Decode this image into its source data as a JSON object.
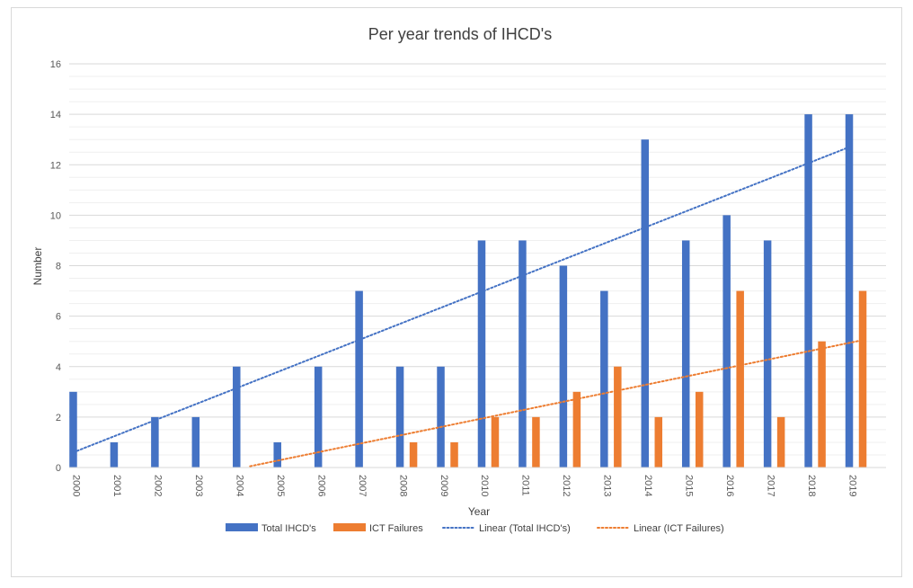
{
  "chart_data": {
    "type": "bar",
    "title": "Per year trends of IHCD's",
    "xlabel": "Year",
    "ylabel": "Number",
    "ylim": [
      0,
      16
    ],
    "yticks": [
      0,
      2,
      4,
      6,
      8,
      10,
      12,
      14,
      16
    ],
    "grid": true,
    "legend_position": "bottom",
    "categories": [
      "2000",
      "2001",
      "2002",
      "2003",
      "2004",
      "2005",
      "2006",
      "2007",
      "2008",
      "2009",
      "2010",
      "2011",
      "2012",
      "2013",
      "2014",
      "2015",
      "2016",
      "2017",
      "2018",
      "2019"
    ],
    "series": [
      {
        "name": "Total IHCD's",
        "color": "#4472c4",
        "values": [
          3,
          1,
          2,
          2,
          4,
          1,
          4,
          7,
          4,
          4,
          9,
          9,
          8,
          7,
          13,
          9,
          10,
          9,
          14,
          14
        ]
      },
      {
        "name": "ICT Failures",
        "color": "#ed7d31",
        "values": [
          0,
          0,
          0,
          0,
          0,
          0,
          0,
          0,
          1,
          1,
          2,
          2,
          3,
          4,
          2,
          3,
          7,
          2,
          5,
          7
        ]
      }
    ],
    "trendlines": [
      {
        "name": "Linear  (Total IHCD's)",
        "color": "#4472c4",
        "from": [
          "2000",
          0.6
        ],
        "to": [
          "2019",
          12.7
        ]
      },
      {
        "name": "Linear  (ICT Failures)",
        "color": "#ed7d31",
        "from": [
          "2004",
          0.05
        ],
        "to": [
          "2019",
          5.05
        ]
      }
    ]
  }
}
